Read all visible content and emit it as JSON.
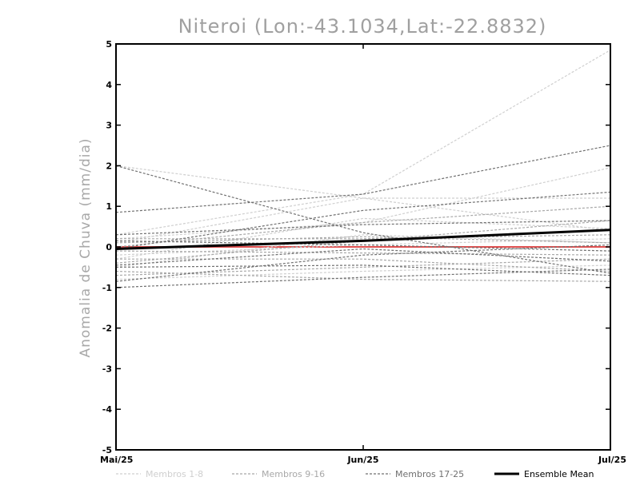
{
  "chart_data": {
    "type": "line",
    "title": "Niteroi (Lon:-43.1034,Lat:-22.8832)",
    "ylabel": "Anomalia de Chuva (mm/dia)",
    "xlabel": "",
    "categories": [
      "Mai/25",
      "Jun/25",
      "Jul/25"
    ],
    "ylim": [
      -5,
      5
    ],
    "yticks": [
      "-5",
      "-4",
      "-3",
      "-2",
      "-1",
      "0",
      "1",
      "2",
      "3",
      "4",
      "5"
    ],
    "zero_line_color": "#e05050",
    "groups": [
      {
        "name": "Membros 1-8",
        "color": "#cfcfcf",
        "dashed": true,
        "series": [
          [
            0.3,
            1.3,
            4.85
          ],
          [
            0.2,
            0.6,
            1.95
          ],
          [
            -0.3,
            0.7,
            0.45
          ],
          [
            2.0,
            1.2,
            0.4
          ],
          [
            -0.5,
            0.3,
            0.1
          ],
          [
            0.1,
            1.2,
            1.2
          ],
          [
            -0.8,
            -0.6,
            -0.45
          ],
          [
            -0.2,
            0.05,
            0.2
          ]
        ]
      },
      {
        "name": "Membros 9-16",
        "color": "#a8a8a8",
        "dashed": true,
        "series": [
          [
            0.0,
            0.6,
            1.0
          ],
          [
            -0.4,
            0.15,
            0.65
          ],
          [
            0.2,
            0.2,
            0.3
          ],
          [
            -0.7,
            -0.5,
            -0.3
          ],
          [
            -0.3,
            -0.3,
            -0.6
          ],
          [
            -0.6,
            -0.8,
            -0.85
          ],
          [
            0.1,
            0.25,
            0.1
          ],
          [
            -0.1,
            -0.15,
            -0.2
          ]
        ]
      },
      {
        "name": "Membros 17-25",
        "color": "#707070",
        "dashed": true,
        "series": [
          [
            0.85,
            1.3,
            2.5
          ],
          [
            2.0,
            0.35,
            -0.65
          ],
          [
            -0.05,
            0.9,
            1.35
          ],
          [
            -1.0,
            -0.75,
            -0.55
          ],
          [
            0.3,
            0.55,
            0.65
          ],
          [
            -0.5,
            -0.45,
            -0.7
          ],
          [
            -0.85,
            -0.2,
            0.05
          ],
          [
            0.15,
            0.05,
            -0.1
          ],
          [
            -0.45,
            -0.05,
            -0.35
          ]
        ]
      }
    ],
    "ensemble_mean": {
      "name": "Ensemble Mean",
      "color": "#000000",
      "values": [
        -0.05,
        0.15,
        0.42
      ]
    }
  }
}
